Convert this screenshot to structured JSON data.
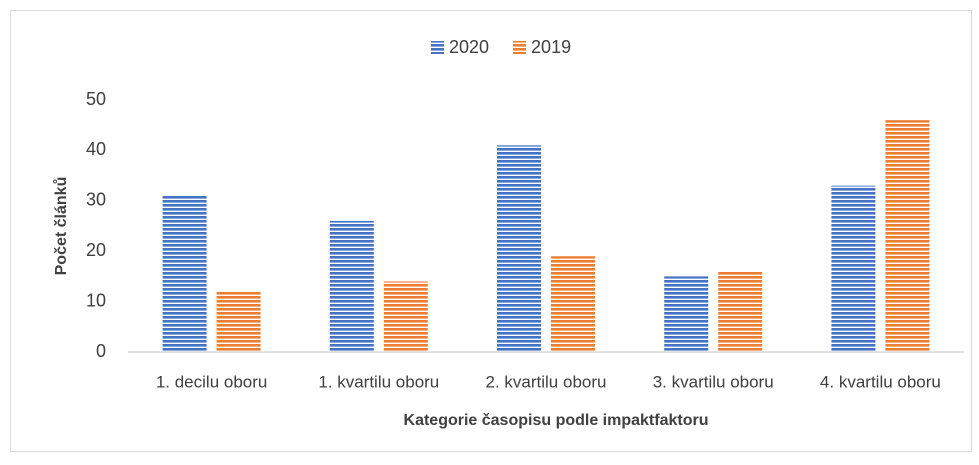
{
  "chart_data": {
    "type": "bar",
    "xlabel": "Kategorie časopisu podle impaktfaktoru",
    "ylabel": "Počet článků",
    "categories": [
      "1. decilu oboru",
      "1. kvartilu oboru",
      "2. kvartilu oboru",
      "3. kvartilu oboru",
      "4. kvartilu oboru"
    ],
    "series": [
      {
        "name": "2020",
        "color": "#4472c4",
        "values": [
          31,
          26,
          41,
          15,
          33
        ]
      },
      {
        "name": "2019",
        "color": "#ed7d31",
        "values": [
          12,
          14,
          19,
          16,
          46
        ]
      }
    ],
    "ylim": [
      0,
      50
    ],
    "yticks": [
      0,
      10,
      20,
      30,
      40,
      50
    ],
    "grid": false,
    "legend": "top"
  }
}
